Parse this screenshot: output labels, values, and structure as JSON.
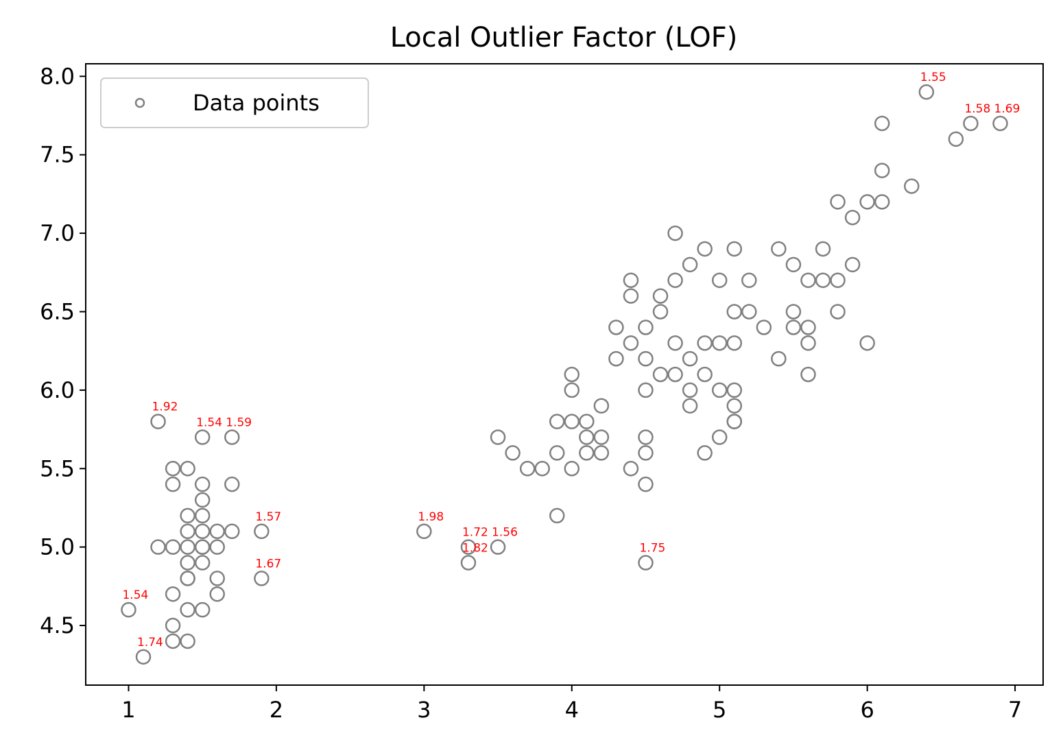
{
  "chart_data": {
    "type": "scatter",
    "title": "Local Outlier Factor (LOF)",
    "xlabel": "",
    "ylabel": "",
    "xlim": [
      0.71,
      7.19
    ],
    "ylim": [
      4.12,
      8.08
    ],
    "xticks": [
      1,
      2,
      3,
      4,
      5,
      6,
      7
    ],
    "xtick_labels": [
      "1",
      "2",
      "3",
      "4",
      "5",
      "6",
      "7"
    ],
    "yticks": [
      4.5,
      5.0,
      5.5,
      6.0,
      6.5,
      7.0,
      7.5,
      8.0
    ],
    "ytick_labels": [
      "4.5",
      "5.0",
      "5.5",
      "6.0",
      "6.5",
      "7.0",
      "7.5",
      "8.0"
    ],
    "grid": false,
    "legend": {
      "position": "top-left",
      "entries": [
        "Data points"
      ]
    },
    "colors": {
      "point_edge": "#808080",
      "annotation": "#ff0000"
    },
    "series": [
      {
        "name": "Data points",
        "x": [
          1.0,
          1.1,
          1.2,
          1.2,
          1.3,
          1.3,
          1.3,
          1.3,
          1.3,
          1.3,
          1.4,
          1.4,
          1.4,
          1.4,
          1.4,
          1.4,
          1.4,
          1.4,
          1.4,
          1.5,
          1.5,
          1.5,
          1.5,
          1.5,
          1.5,
          1.5,
          1.5,
          1.5,
          1.6,
          1.6,
          1.6,
          1.6,
          1.7,
          1.7,
          1.7,
          1.9,
          1.9,
          3.0,
          3.3,
          3.3,
          3.5,
          3.5,
          3.6,
          3.7,
          3.8,
          3.9,
          3.9,
          3.9,
          4.0,
          4.0,
          4.0,
          4.0,
          4.1,
          4.1,
          4.1,
          4.2,
          4.2,
          4.2,
          4.3,
          4.3,
          4.4,
          4.4,
          4.4,
          4.4,
          4.5,
          4.5,
          4.5,
          4.5,
          4.5,
          4.5,
          4.5,
          4.6,
          4.6,
          4.6,
          4.7,
          4.7,
          4.7,
          4.7,
          4.8,
          4.8,
          4.8,
          4.8,
          4.9,
          4.9,
          4.9,
          4.9,
          5.0,
          5.0,
          5.0,
          5.0,
          5.1,
          5.1,
          5.1,
          5.1,
          5.1,
          5.1,
          5.1,
          5.2,
          5.2,
          5.3,
          5.4,
          5.4,
          5.5,
          5.5,
          5.5,
          5.6,
          5.6,
          5.6,
          5.6,
          5.7,
          5.7,
          5.8,
          5.8,
          5.8,
          5.9,
          5.9,
          6.0,
          6.0,
          6.1,
          6.1,
          6.1,
          6.3,
          6.4,
          6.6,
          6.7,
          6.9
        ],
        "y": [
          4.6,
          4.3,
          5.8,
          5.0,
          5.5,
          5.4,
          5.0,
          4.7,
          4.5,
          4.4,
          5.5,
          5.2,
          5.1,
          5.0,
          4.9,
          4.8,
          4.6,
          4.4,
          4.8,
          5.7,
          5.4,
          5.3,
          5.2,
          5.1,
          5.0,
          4.9,
          4.6,
          5.0,
          5.1,
          5.0,
          4.8,
          4.7,
          5.7,
          5.4,
          5.1,
          5.1,
          4.8,
          5.1,
          5.0,
          4.9,
          5.7,
          5.0,
          5.6,
          5.5,
          5.5,
          5.8,
          5.6,
          5.2,
          6.1,
          6.0,
          5.8,
          5.5,
          5.8,
          5.7,
          5.6,
          5.9,
          5.7,
          5.6,
          6.4,
          6.2,
          6.7,
          6.6,
          6.3,
          5.5,
          6.4,
          6.2,
          6.0,
          5.7,
          5.6,
          5.4,
          4.9,
          6.6,
          6.5,
          6.1,
          7.0,
          6.7,
          6.3,
          6.1,
          6.8,
          6.2,
          6.0,
          5.9,
          6.9,
          6.3,
          6.1,
          5.6,
          6.7,
          6.3,
          6.0,
          5.7,
          6.9,
          6.5,
          6.3,
          6.0,
          5.9,
          5.8,
          5.8,
          6.7,
          6.5,
          6.4,
          6.9,
          6.2,
          6.8,
          6.5,
          6.4,
          6.7,
          6.4,
          6.3,
          6.1,
          6.9,
          6.7,
          7.2,
          6.7,
          6.5,
          7.1,
          6.8,
          7.2,
          6.3,
          7.7,
          7.4,
          7.2,
          7.3,
          7.9,
          7.6,
          7.7,
          7.7
        ]
      }
    ],
    "annotations": [
      {
        "x": 1.2,
        "y": 5.8,
        "text": "1.92"
      },
      {
        "x": 1.5,
        "y": 5.7,
        "text": "1.54"
      },
      {
        "x": 1.7,
        "y": 5.7,
        "text": "1.59"
      },
      {
        "x": 1.9,
        "y": 5.1,
        "text": "1.57"
      },
      {
        "x": 1.9,
        "y": 4.8,
        "text": "1.67"
      },
      {
        "x": 1.0,
        "y": 4.6,
        "text": "1.54"
      },
      {
        "x": 1.1,
        "y": 4.3,
        "text": "1.74"
      },
      {
        "x": 3.0,
        "y": 5.1,
        "text": "1.98"
      },
      {
        "x": 3.3,
        "y": 5.0,
        "text": "1.72"
      },
      {
        "x": 3.3,
        "y": 4.9,
        "text": "1.82"
      },
      {
        "x": 3.5,
        "y": 5.0,
        "text": "1.56"
      },
      {
        "x": 4.5,
        "y": 4.9,
        "text": "1.75"
      },
      {
        "x": 6.4,
        "y": 7.9,
        "text": "1.55"
      },
      {
        "x": 6.7,
        "y": 7.7,
        "text": "1.58"
      },
      {
        "x": 6.9,
        "y": 7.7,
        "text": "1.69"
      }
    ]
  }
}
